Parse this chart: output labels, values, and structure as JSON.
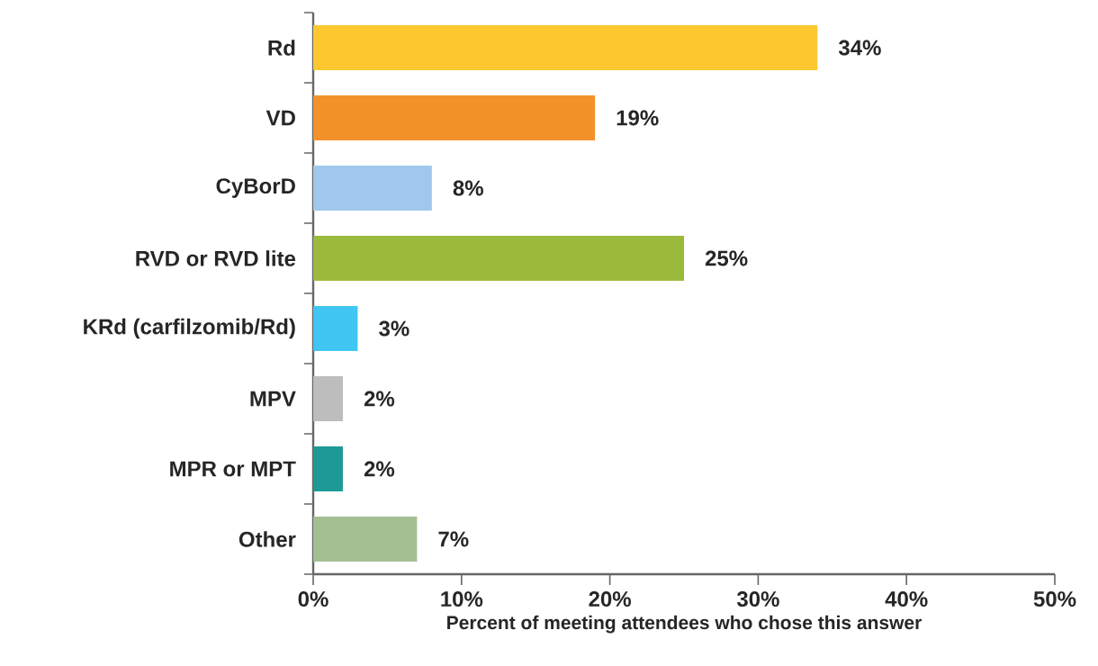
{
  "chart_data": {
    "type": "bar",
    "orientation": "horizontal",
    "xlabel": "Percent of meeting attendees who chose this answer",
    "categories": [
      "Rd",
      "VD",
      "CyBorD",
      "RVD or RVD lite",
      "KRd (carfilzomib/Rd)",
      "MPV",
      "MPR or MPT",
      "Other"
    ],
    "values": [
      34,
      19,
      8,
      25,
      3,
      2,
      2,
      7
    ],
    "colors": [
      "#fdc82f",
      "#f4922a",
      "#a0c8ec",
      "#9bba3b",
      "#40c6f2",
      "#bdbdbd",
      "#1e9a96",
      "#a3bf92"
    ],
    "value_labels": [
      "34%",
      "19%",
      "8%",
      "25%",
      "3%",
      "2%",
      "2%",
      "7%"
    ],
    "xlim": [
      0,
      50
    ],
    "xticks": [
      {
        "value": 0,
        "label": "0%"
      },
      {
        "value": 10,
        "label": "10%"
      },
      {
        "value": 20,
        "label": "20%"
      },
      {
        "value": 30,
        "label": "30%"
      },
      {
        "value": 40,
        "label": "40%"
      },
      {
        "value": 50,
        "label": "50%"
      }
    ]
  }
}
